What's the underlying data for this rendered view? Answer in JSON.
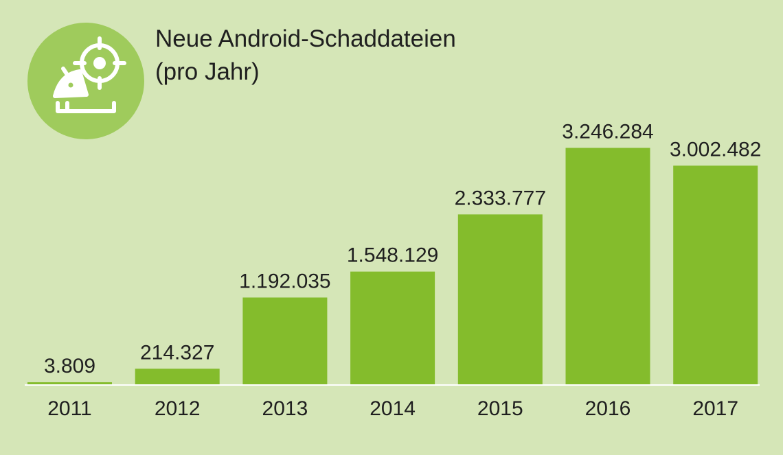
{
  "chart_data": {
    "type": "bar",
    "title": "Neue Android-Schaddateien",
    "subtitle": "(pro Jahr)",
    "categories": [
      "2011",
      "2012",
      "2013",
      "2014",
      "2015",
      "2016",
      "2017"
    ],
    "values": [
      3809,
      214327,
      1192035,
      1548129,
      2333777,
      3246284,
      3002482
    ],
    "value_labels": [
      "3.809",
      "214.327",
      "1.192.035",
      "1.548.129",
      "2.333.777",
      "3.246.284",
      "3.002.482"
    ],
    "xlabel": "",
    "ylabel": "",
    "ylim": [
      0,
      3600000
    ],
    "grid": false,
    "legend": "none"
  },
  "colors": {
    "background": "#d5e6b7",
    "bar": "#84bc2c",
    "icon_circle": "#9fcb5c",
    "icon": "#ffffff",
    "baseline": "#ffffff",
    "text": "#1f1f1f"
  },
  "icon": {
    "name": "android-target-icon"
  }
}
